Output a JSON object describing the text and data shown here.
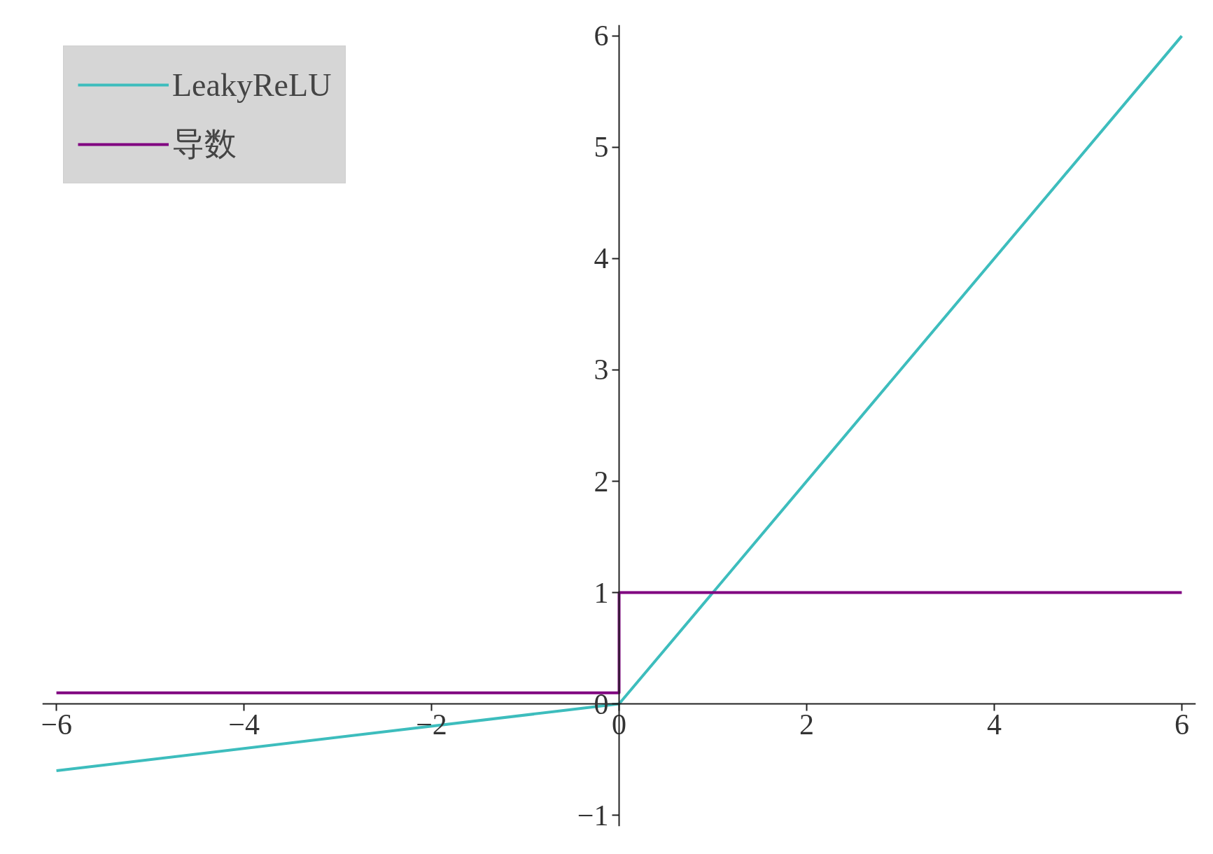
{
  "chart_data": {
    "type": "line",
    "xlim": [
      -6.15,
      6.15
    ],
    "ylim": [
      -1.1,
      6.1
    ],
    "xticks": [
      -6,
      -4,
      -2,
      0,
      2,
      4,
      6
    ],
    "yticks": [
      -1,
      0,
      1,
      2,
      3,
      4,
      5,
      6
    ],
    "grid": false,
    "legend": "top left",
    "marker": "none",
    "line_style": "solid",
    "series": [
      {
        "name": "LeakyReLU",
        "color": "#3dbdbd",
        "x": [
          -6,
          0,
          6
        ],
        "values": [
          -0.6,
          0,
          6
        ]
      },
      {
        "name": "导数",
        "color": "#800080",
        "x": [
          -6,
          0,
          0,
          6
        ],
        "values": [
          0.1,
          0.1,
          1,
          1
        ]
      }
    ]
  }
}
